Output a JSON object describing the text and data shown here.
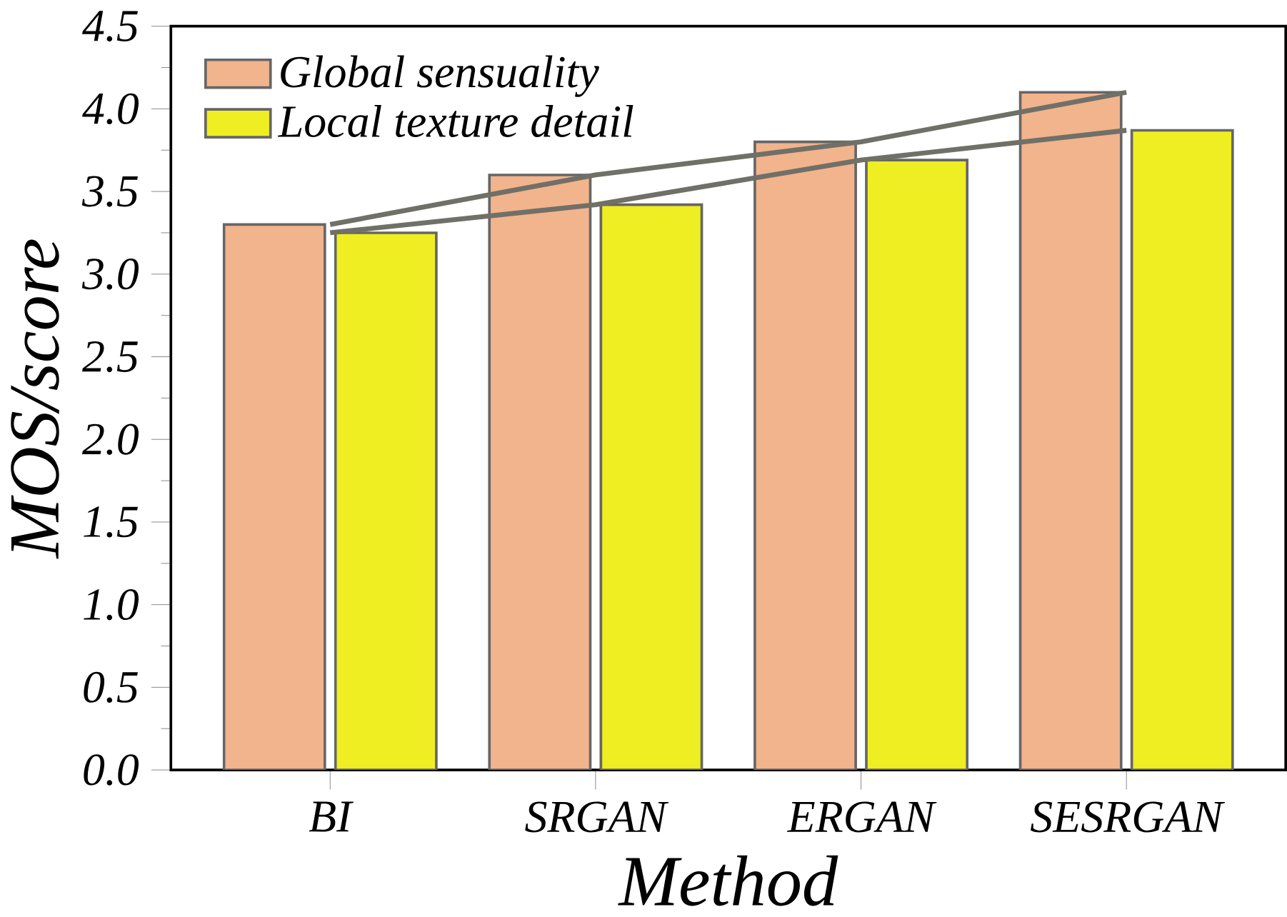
{
  "chart_data": {
    "type": "bar",
    "xlabel": "Method",
    "ylabel": "MOS/score",
    "categories": [
      "BI",
      "SRGAN",
      "ERGAN",
      "SESRGAN"
    ],
    "series": [
      {
        "name": "Global sensuality",
        "color": "#f2b48c",
        "values": [
          3.3,
          3.6,
          3.8,
          4.1
        ]
      },
      {
        "name": "Local texture detail",
        "color": "#eeee22",
        "values": [
          3.25,
          3.42,
          3.69,
          3.87
        ]
      },
      {
        "type": "line",
        "color": "#707068",
        "values": [
          3.3,
          3.6,
          3.8,
          4.1
        ]
      },
      {
        "type": "line",
        "color": "#707068",
        "values": [
          3.25,
          3.42,
          3.69,
          3.87
        ]
      }
    ],
    "ylim": [
      0,
      4.5
    ],
    "yticks": [
      {
        "value": 0,
        "label": "0.0"
      },
      0.5,
      {
        "value": 1,
        "label": "1.0"
      },
      1.5,
      {
        "value": 2,
        "label": "2.0"
      },
      2.5,
      {
        "value": 3,
        "label": "3.0"
      },
      3.5,
      {
        "value": 4,
        "label": "4.0"
      },
      4.5
    ],
    "legend": "top left",
    "grid": false
  }
}
